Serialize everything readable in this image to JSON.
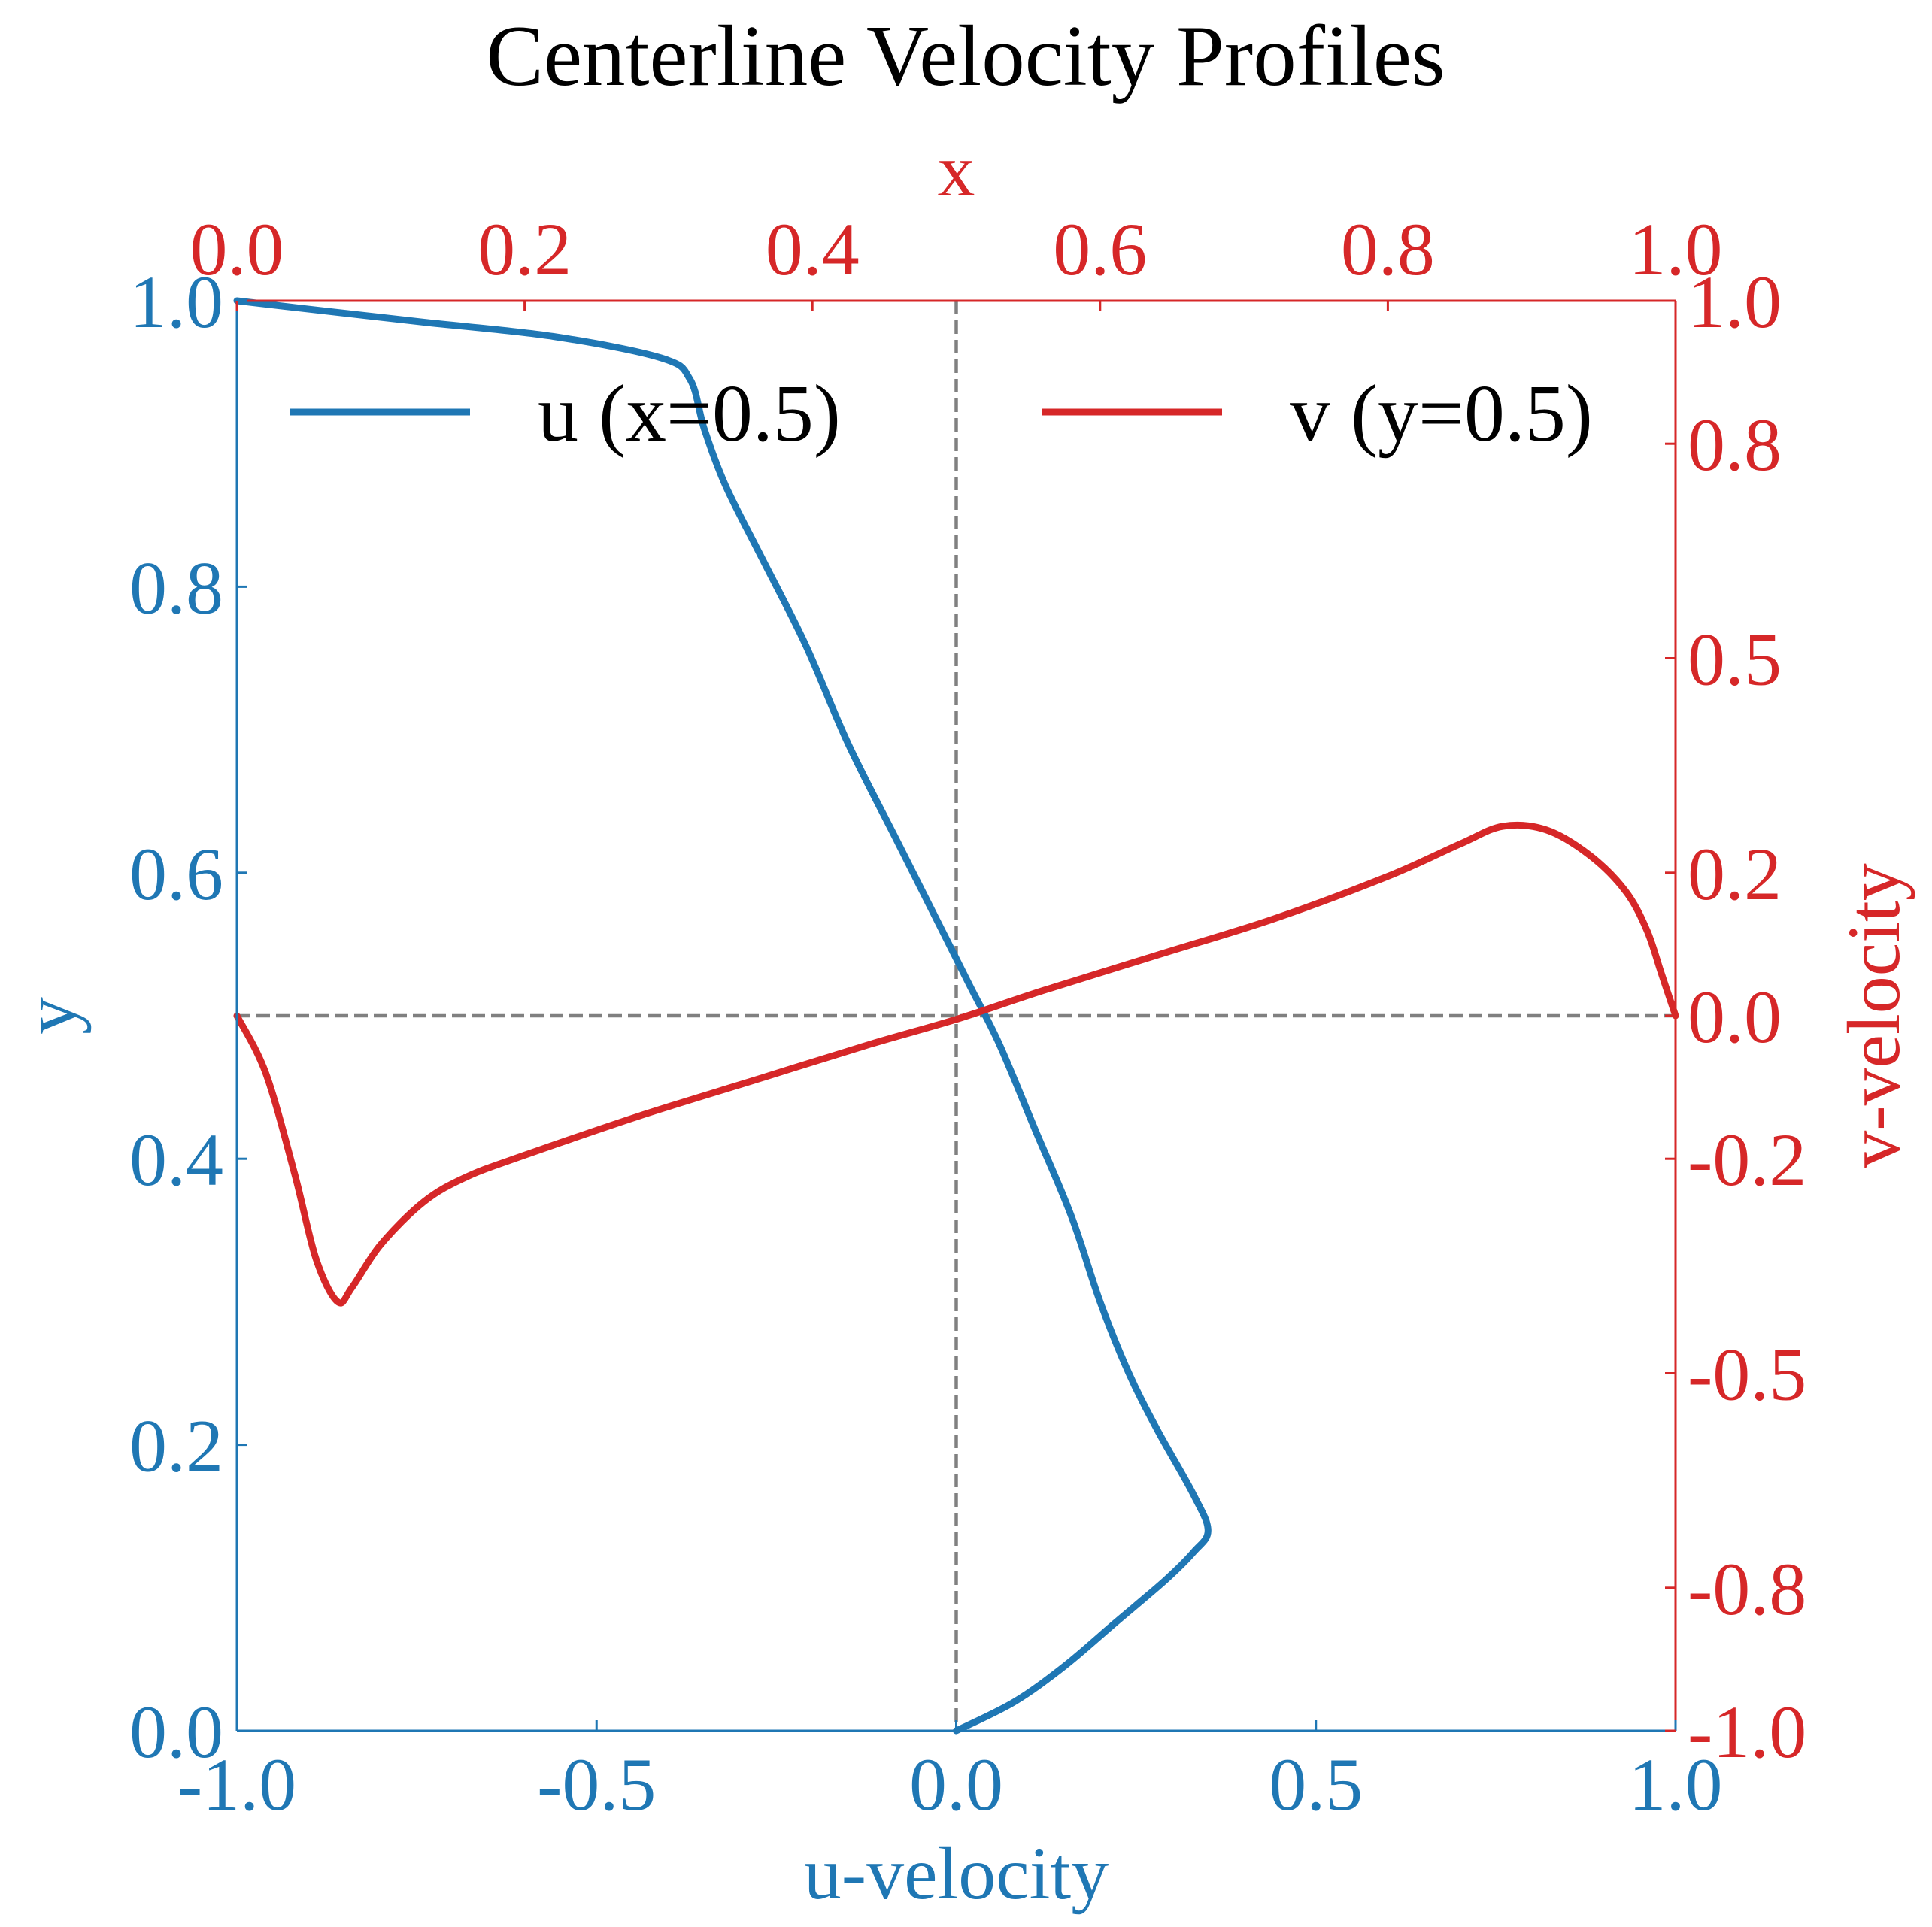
{
  "chart_data": {
    "type": "line",
    "title": "Centerline Velocity Profiles",
    "colors": {
      "u": "#1f77b4",
      "v": "#d62728",
      "reference": "#808080"
    },
    "axes": {
      "bottom": {
        "label": "u-velocity",
        "range": [
          -1.0,
          1.0
        ],
        "ticks": [
          "-1.0",
          "-0.5",
          "0.0",
          "0.5",
          "1.0"
        ],
        "color": "#1f77b4"
      },
      "left": {
        "label": "y",
        "range": [
          0.0,
          1.0
        ],
        "ticks": [
          "0.0",
          "0.2",
          "0.4",
          "0.6",
          "0.8",
          "1.0"
        ],
        "color": "#1f77b4"
      },
      "top": {
        "label": "x",
        "range": [
          0.0,
          1.0
        ],
        "ticks": [
          "0.0",
          "0.2",
          "0.4",
          "0.6",
          "0.8",
          "1.0"
        ],
        "color": "#d62728"
      },
      "right": {
        "label": "v-velocity",
        "range": [
          -1.0,
          1.0
        ],
        "ticks": [
          "-1.0",
          "-0.8",
          "-0.5",
          "-0.2",
          "0.0",
          "0.2",
          "0.5",
          "0.8",
          "1.0"
        ],
        "color": "#d62728"
      }
    },
    "legend": {
      "placement": "top",
      "columns": 2
    },
    "series": [
      {
        "name": "u (x=0.5)",
        "axes": "bottom-left",
        "note_x_is_u_y_is_y": true,
        "points": [
          [
            0.0,
            0.0
          ],
          [
            0.08,
            0.02
          ],
          [
            0.15,
            0.045
          ],
          [
            0.22,
            0.075
          ],
          [
            0.29,
            0.105
          ],
          [
            0.33,
            0.125
          ],
          [
            0.35,
            0.14
          ],
          [
            0.33,
            0.165
          ],
          [
            0.28,
            0.21
          ],
          [
            0.24,
            0.25
          ],
          [
            0.2,
            0.3
          ],
          [
            0.16,
            0.36
          ],
          [
            0.11,
            0.42
          ],
          [
            0.06,
            0.48
          ],
          [
            0.02,
            0.52
          ],
          [
            -0.02,
            0.56
          ],
          [
            -0.08,
            0.62
          ],
          [
            -0.15,
            0.69
          ],
          [
            -0.21,
            0.76
          ],
          [
            -0.27,
            0.82
          ],
          [
            -0.32,
            0.87
          ],
          [
            -0.35,
            0.91
          ],
          [
            -0.37,
            0.945
          ],
          [
            -0.41,
            0.96
          ],
          [
            -0.56,
            0.975
          ],
          [
            -0.74,
            0.985
          ],
          [
            -0.88,
            0.993
          ],
          [
            -1.0,
            1.0
          ]
        ]
      },
      {
        "name": "v (y=0.5)",
        "axes": "top-right",
        "note_x_is_x_y_is_v": true,
        "points": [
          [
            0.0,
            0.0
          ],
          [
            0.02,
            -0.08
          ],
          [
            0.04,
            -0.22
          ],
          [
            0.055,
            -0.34
          ],
          [
            0.07,
            -0.4
          ],
          [
            0.08,
            -0.38
          ],
          [
            0.1,
            -0.32
          ],
          [
            0.13,
            -0.26
          ],
          [
            0.16,
            -0.225
          ],
          [
            0.2,
            -0.195
          ],
          [
            0.28,
            -0.14
          ],
          [
            0.36,
            -0.09
          ],
          [
            0.44,
            -0.04
          ],
          [
            0.5,
            -0.005
          ],
          [
            0.56,
            0.035
          ],
          [
            0.64,
            0.085
          ],
          [
            0.72,
            0.135
          ],
          [
            0.8,
            0.195
          ],
          [
            0.85,
            0.24
          ],
          [
            0.88,
            0.265
          ],
          [
            0.91,
            0.26
          ],
          [
            0.94,
            0.225
          ],
          [
            0.965,
            0.175
          ],
          [
            0.98,
            0.12
          ],
          [
            0.99,
            0.06
          ],
          [
            1.0,
            0.0
          ]
        ]
      }
    ],
    "reference_lines": [
      {
        "orientation": "horizontal",
        "axis": "left",
        "value": 0.5,
        "style": "dashed"
      },
      {
        "orientation": "vertical",
        "axis": "bottom",
        "value": 0.0,
        "style": "dashed"
      }
    ]
  }
}
